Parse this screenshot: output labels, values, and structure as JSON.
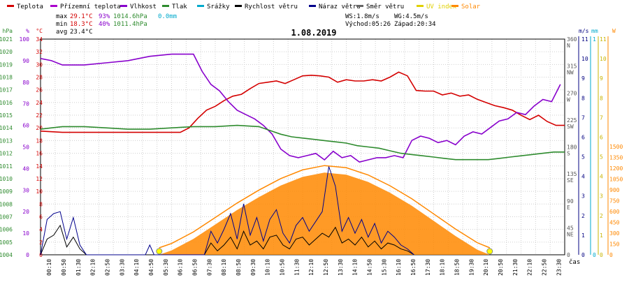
{
  "legend": [
    {
      "label": "Teplota",
      "color": "#d40000"
    },
    {
      "label": "Přízemní teplota",
      "color": "#aa00cc"
    },
    {
      "label": "Vlhkost",
      "color": "#8800cc"
    },
    {
      "label": "Tlak",
      "color": "#2e8b2e"
    },
    {
      "label": "Srážky",
      "color": "#00aacc"
    },
    {
      "label": "Rychlost větru",
      "color": "#000000"
    },
    {
      "label": "Náraz větru",
      "color": "#00008b"
    },
    {
      "label": "Směr větru",
      "color": "#666666"
    },
    {
      "label": "UV index",
      "color": "#e0d000"
    },
    {
      "label": "Solar",
      "color": "#ff8800"
    }
  ],
  "stats": {
    "max_label": "max",
    "max_temp": "29.1°C",
    "max_hum": "93%",
    "max_press": "1014.6hPa",
    "max_rain": "0.0mm",
    "min_label": "min",
    "min_temp": "18.3°C",
    "min_hum": "40%",
    "min_press": "1011.4hPa",
    "avg_label": "avg",
    "avg_temp": "23.4°C",
    "ws": "WS:1.8m/s",
    "wg": "WG:4.5m/s",
    "sunrise": "Východ:05:26",
    "sunset": "Západ:20:34"
  },
  "chart_data": {
    "type": "line",
    "title": "1.08.2019",
    "x_axis_label": "čas",
    "x_ticks": [
      "00:10",
      "00:50",
      "01:30",
      "02:10",
      "02:50",
      "03:30",
      "04:10",
      "04:50",
      "05:30",
      "06:10",
      "06:50",
      "07:30",
      "08:10",
      "08:50",
      "09:30",
      "10:10",
      "10:50",
      "11:30",
      "12:10",
      "12:50",
      "13:30",
      "14:10",
      "14:50",
      "15:30",
      "16:10",
      "16:50",
      "17:30",
      "18:10",
      "18:50",
      "19:30",
      "20:10",
      "20:50",
      "21:30",
      "22:10",
      "22:50",
      "23:30"
    ],
    "axes": {
      "hpa": {
        "unit": "hPa",
        "ticks": [
          "1021",
          "1020",
          "1019",
          "1018",
          "1017",
          "1016",
          "1015",
          "1014",
          "1013",
          "1012",
          "1011",
          "1010",
          "1009",
          "1008",
          "1007",
          "1006",
          "1005",
          "1004"
        ],
        "range": [
          1004,
          1021
        ]
      },
      "percent": {
        "unit": "%",
        "ticks": [
          "100",
          "90",
          "80",
          "70",
          "60",
          "50",
          "40",
          "30",
          "20",
          "10",
          "0"
        ],
        "range": [
          0,
          100
        ]
      },
      "celsius": {
        "unit": "°C",
        "ticks": [
          "34",
          "32",
          "30",
          "28",
          "26",
          "24",
          "22",
          "20",
          "18",
          "16",
          "14",
          "12",
          "10",
          "8",
          "6",
          "4",
          "2",
          "0"
        ],
        "range": [
          0,
          34
        ]
      },
      "wind_dir": {
        "ticks": [
          "360\nN",
          "315\nNW",
          "270\nW",
          "225\nSW",
          "180\nS",
          "135\nSE",
          "90\nE",
          "45\nNE",
          "0"
        ],
        "range": [
          0,
          360
        ]
      },
      "mm": {
        "unit": "mm",
        "ticks": [
          "1",
          "0"
        ],
        "range": [
          0,
          1
        ]
      },
      "ms": {
        "unit": "m/s",
        "ticks": [
          "11",
          "10",
          "9",
          "8",
          "7",
          "6",
          "5",
          "4",
          "3",
          "2",
          "1",
          "0"
        ],
        "range": [
          0,
          11
        ]
      },
      "uv": {
        "ticks": [
          "11",
          "10",
          "9",
          "8",
          "7",
          "6",
          "5",
          "4",
          "3",
          "2",
          "1",
          "0"
        ],
        "range": [
          0,
          11
        ]
      },
      "wm2": {
        "unit": "W",
        "ticks": [
          "1500",
          "1350",
          "1200",
          "1050",
          "900",
          "750",
          "600",
          "450",
          "300",
          "150",
          "0"
        ],
        "range": [
          0,
          1500
        ]
      }
    },
    "series": [
      {
        "name": "Teplota",
        "unit": "°C",
        "color": "#d40000",
        "x": [
          0,
          1,
          2,
          3,
          4,
          5,
          6,
          6.4,
          6.8,
          7.2,
          7.6,
          8,
          8.4,
          8.8,
          9.2,
          9.6,
          10,
          10.4,
          10.8,
          11.2,
          11.6,
          12,
          12.4,
          12.8,
          13.2,
          13.6,
          14,
          14.4,
          14.8,
          15.2,
          15.6,
          16,
          16.4,
          16.8,
          17.2,
          17.6,
          18,
          18.4,
          18.8,
          19.2,
          19.6,
          20,
          20.4,
          20.8,
          21.2,
          21.6,
          22,
          22.4,
          22.8,
          23.2,
          23.6,
          24
        ],
        "y": [
          19.5,
          19.3,
          19.3,
          19.3,
          19.3,
          19.3,
          19.3,
          19.3,
          20.0,
          21.5,
          22.8,
          23.4,
          24.3,
          25.0,
          25.3,
          26.2,
          27.0,
          27.2,
          27.4,
          27.0,
          27.6,
          28.2,
          28.3,
          28.2,
          28.0,
          27.2,
          27.6,
          27.4,
          27.4,
          27.6,
          27.4,
          28.0,
          28.8,
          28.2,
          25.9,
          25.8,
          25.8,
          25.2,
          25.5,
          25.0,
          25.2,
          24.5,
          24.0,
          23.5,
          23.2,
          22.8,
          22.0,
          21.3,
          22.0,
          21.0,
          20.4,
          20.4
        ]
      },
      {
        "name": "Vlhkost",
        "unit": "%",
        "color": "#8800cc",
        "x": [
          0,
          0.5,
          1,
          2,
          3,
          4,
          5,
          6,
          7,
          7.4,
          7.8,
          8.2,
          8.6,
          9,
          9.4,
          9.8,
          10.2,
          10.6,
          11,
          11.4,
          11.8,
          12.2,
          12.6,
          13,
          13.4,
          13.8,
          14.2,
          14.6,
          15,
          15.4,
          15.8,
          16.2,
          16.6,
          17,
          17.4,
          17.8,
          18.2,
          18.6,
          19,
          19.4,
          19.8,
          20.2,
          20.6,
          21,
          21.4,
          21.8,
          22.2,
          22.6,
          23,
          23.4,
          23.8
        ],
        "y": [
          91,
          90,
          88,
          88,
          89,
          90,
          92,
          93,
          93,
          85,
          79,
          76,
          71,
          67,
          65,
          63,
          60,
          56,
          49,
          46,
          45,
          46,
          47,
          44,
          48,
          45,
          46,
          43,
          44,
          45,
          45,
          46,
          45,
          53,
          55,
          54,
          52,
          53,
          51,
          55,
          57,
          56,
          59,
          62,
          63,
          66,
          65,
          69,
          72,
          71,
          79
        ]
      },
      {
        "name": "Tlak",
        "unit": "hPa",
        "color": "#2e8b2e",
        "x": [
          0,
          0.5,
          1,
          2,
          3,
          4,
          5,
          6,
          7,
          8,
          9,
          10,
          10.5,
          11,
          11.5,
          12,
          12.5,
          13,
          13.5,
          14,
          14.5,
          15,
          15.5,
          16,
          16.5,
          17,
          17.5,
          18,
          18.5,
          19,
          19.5,
          20,
          20.5,
          21,
          21.5,
          22,
          22.5,
          23,
          23.5,
          24
        ],
        "y": [
          1013.9,
          1014.0,
          1014.1,
          1014.1,
          1014.0,
          1013.9,
          1013.9,
          1014.0,
          1014.1,
          1014.1,
          1014.2,
          1014.1,
          1013.8,
          1013.5,
          1013.3,
          1013.2,
          1013.1,
          1013.0,
          1012.9,
          1012.8,
          1012.6,
          1012.5,
          1012.4,
          1012.2,
          1012.0,
          1011.9,
          1011.8,
          1011.7,
          1011.6,
          1011.5,
          1011.5,
          1011.5,
          1011.5,
          1011.6,
          1011.7,
          1011.8,
          1011.9,
          1012.0,
          1012.1,
          1012.1
        ]
      },
      {
        "name": "Rychlost větru",
        "unit": "m/s",
        "color": "#000000",
        "x": [
          0,
          0.3,
          0.6,
          0.9,
          1.2,
          1.5,
          1.8,
          2.1,
          7.5,
          7.8,
          8.1,
          8.4,
          8.7,
          9.0,
          9.3,
          9.6,
          9.9,
          10.2,
          10.5,
          10.8,
          11.1,
          11.4,
          11.7,
          12.0,
          12.3,
          12.6,
          12.9,
          13.2,
          13.5,
          13.8,
          14.1,
          14.4,
          14.7,
          15.0,
          15.3,
          15.6,
          15.9,
          16.2,
          16.5,
          16.8,
          17.1
        ],
        "y": [
          0,
          0.8,
          1.0,
          1.5,
          0.4,
          0.9,
          0.3,
          0,
          0,
          0.6,
          0.2,
          0.5,
          0.9,
          0.3,
          1.2,
          0.5,
          0.7,
          0.3,
          0.9,
          1.0,
          0.5,
          0.3,
          0.8,
          0.9,
          0.5,
          0.8,
          1.1,
          0.9,
          1.4,
          0.6,
          0.8,
          0.5,
          0.9,
          0.4,
          0.7,
          0.3,
          0.6,
          0.5,
          0.3,
          0.2,
          0
        ]
      },
      {
        "name": "Náraz větru",
        "unit": "m/s",
        "color": "#00008b",
        "x": [
          0,
          0.3,
          0.6,
          0.9,
          1.2,
          1.5,
          1.8,
          2.1,
          4.8,
          5.0,
          5.2,
          7.5,
          7.8,
          8.1,
          8.4,
          8.7,
          9.0,
          9.3,
          9.6,
          9.9,
          10.2,
          10.5,
          10.8,
          11.1,
          11.4,
          11.7,
          12.0,
          12.3,
          12.6,
          12.9,
          13.2,
          13.5,
          13.8,
          14.1,
          14.4,
          14.7,
          15.0,
          15.3,
          15.6,
          15.9,
          16.2,
          16.5,
          16.8,
          17.1
        ],
        "y": [
          0,
          1.8,
          2.1,
          2.2,
          0.8,
          1.9,
          0.5,
          0,
          0,
          0.5,
          0,
          0,
          1.2,
          0.6,
          1.3,
          2.1,
          0.8,
          2.6,
          1.0,
          1.9,
          0.7,
          1.8,
          2.3,
          1.1,
          0.6,
          1.5,
          1.9,
          1.2,
          1.7,
          2.2,
          4.5,
          3.5,
          1.2,
          1.9,
          1.1,
          1.8,
          0.9,
          1.6,
          0.6,
          1.2,
          0.9,
          0.5,
          0.3,
          0
        ]
      },
      {
        "name": "Solar",
        "unit": "W/m²",
        "color": "#ff8800",
        "x": [
          5.43,
          6,
          7,
          8,
          9,
          10,
          11,
          12,
          13,
          14,
          15,
          16,
          17,
          18,
          19,
          20,
          20.57
        ],
        "y": [
          0,
          60,
          220,
          420,
          620,
          800,
          960,
          1080,
          1140,
          1110,
          1010,
          860,
          680,
          470,
          260,
          70,
          0
        ]
      }
    ]
  }
}
